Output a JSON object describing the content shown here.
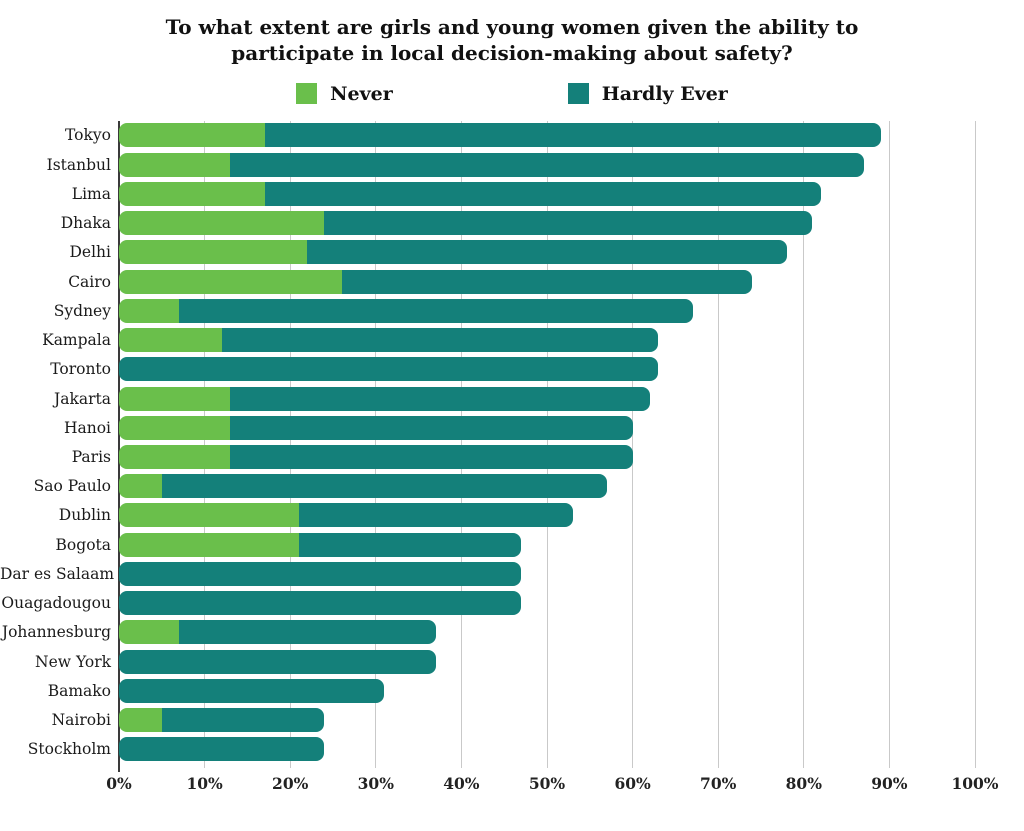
{
  "title": "To what extent are girls and young women given the ability to participate in local decision-making about safety?",
  "colors": {
    "never": "#6abf4b",
    "hardly_ever": "#14807a",
    "gridline": "#c9c9c9",
    "axis_line": "#3a3a3a",
    "text": "#111111"
  },
  "chart_data": {
    "type": "bar",
    "orientation": "horizontal",
    "stacked": true,
    "title": "To what extent are girls and young women given the ability to participate in local decision-making about safety?",
    "legend_position": "top",
    "grid": true,
    "xlim": [
      0,
      100
    ],
    "x_ticks": [
      "0%",
      "10%",
      "20%",
      "30%",
      "40%",
      "50%",
      "60%",
      "70%",
      "80%",
      "90%",
      "100%"
    ],
    "categories": [
      "Tokyo",
      "Istanbul",
      "Lima",
      "Dhaka",
      "Delhi",
      "Cairo",
      "Sydney",
      "Kampala",
      "Toronto",
      "Jakarta",
      "Hanoi",
      "Paris",
      "Sao Paulo",
      "Dublin",
      "Bogota",
      "Dar es Salaam",
      "Ouagadougou",
      "Johannesburg",
      "New York",
      "Bamako",
      "Nairobi",
      "Stockholm"
    ],
    "series": [
      {
        "name": "Never",
        "color": "#6abf4b",
        "values": [
          17,
          13,
          17,
          24,
          22,
          26,
          7,
          12,
          0,
          13,
          13,
          13,
          5,
          21,
          21,
          0,
          0,
          7,
          0,
          0,
          5,
          0
        ]
      },
      {
        "name": "Hardly Ever",
        "color": "#14807a",
        "values": [
          72,
          74,
          65,
          57,
          56,
          48,
          60,
          51,
          63,
          49,
          47,
          47,
          52,
          32,
          26,
          47,
          47,
          30,
          37,
          31,
          19,
          24
        ]
      }
    ],
    "totals": [
      89,
      87,
      82,
      81,
      78,
      74,
      67,
      63,
      63,
      62,
      60,
      60,
      57,
      53,
      47,
      47,
      47,
      37,
      37,
      31,
      24,
      24
    ]
  }
}
